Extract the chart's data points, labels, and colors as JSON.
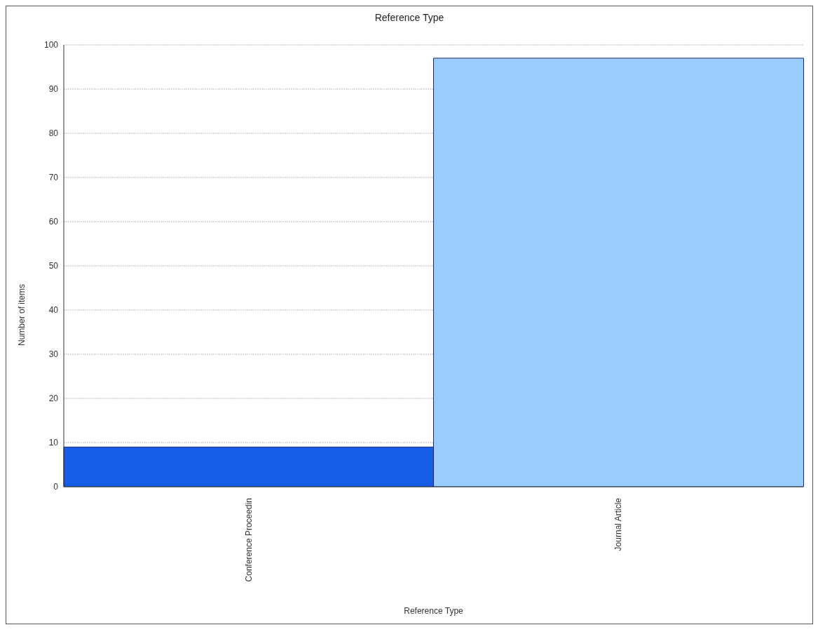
{
  "chart_data": {
    "type": "bar",
    "title": "Reference Type",
    "xlabel": "Reference Type",
    "ylabel": "Number of items",
    "categories": [
      "Conference Proceedin",
      "Journal Article"
    ],
    "values": [
      9,
      97
    ],
    "colors": [
      "#155ce6",
      "#99ccff"
    ],
    "ylim": [
      0,
      100
    ],
    "yticks": [
      0,
      10,
      20,
      30,
      40,
      50,
      60,
      70,
      80,
      90,
      100
    ],
    "grid": "y"
  }
}
